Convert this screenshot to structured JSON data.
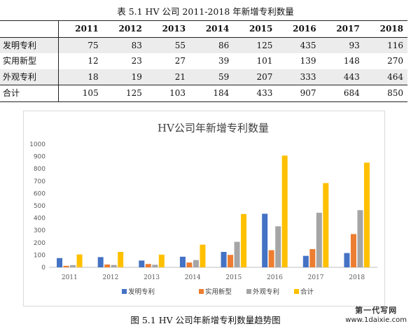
{
  "table_caption": "表 5.1 HV 公司 2011-2018 年新增专利数量",
  "table": {
    "years": [
      "2011",
      "2012",
      "2013",
      "2014",
      "2015",
      "2016",
      "2017",
      "2018"
    ],
    "rows": [
      {
        "label": "发明专利",
        "values": [
          "75",
          "83",
          "55",
          "86",
          "125",
          "435",
          "93",
          "116"
        ]
      },
      {
        "label": "实用新型",
        "values": [
          "12",
          "23",
          "27",
          "39",
          "101",
          "139",
          "148",
          "270"
        ]
      },
      {
        "label": "外观专利",
        "values": [
          "18",
          "19",
          "21",
          "59",
          "207",
          "333",
          "443",
          "464"
        ]
      },
      {
        "label": "合计",
        "values": [
          "105",
          "125",
          "103",
          "184",
          "433",
          "907",
          "684",
          "850"
        ]
      }
    ]
  },
  "chart_data": {
    "type": "bar",
    "title": "HV公司年新增专利数量",
    "categories": [
      "2011",
      "2012",
      "2013",
      "2014",
      "2015",
      "2016",
      "2017",
      "2018"
    ],
    "series": [
      {
        "name": "发明专利",
        "color": "#4472c4",
        "values": [
          75,
          83,
          55,
          86,
          125,
          435,
          93,
          116
        ]
      },
      {
        "name": "实用新型",
        "color": "#ed7d31",
        "values": [
          12,
          23,
          27,
          39,
          101,
          139,
          148,
          270
        ]
      },
      {
        "name": "外观专利",
        "color": "#a5a5a5",
        "values": [
          18,
          19,
          21,
          59,
          207,
          333,
          443,
          464
        ]
      },
      {
        "name": "合计",
        "color": "#ffc000",
        "values": [
          105,
          125,
          103,
          184,
          433,
          907,
          684,
          850
        ]
      }
    ],
    "ylim": [
      0,
      1000
    ],
    "yticks": [
      "0",
      "100",
      "200",
      "300",
      "400",
      "500",
      "600",
      "700",
      "800",
      "900",
      "1000"
    ],
    "xlabel": "",
    "ylabel": "",
    "grid": false,
    "legend": "bottom"
  },
  "figure_caption": "图 5.1 HV 公司年新增专利数量趋势图",
  "watermark": {
    "line1": "第一代写网",
    "line2": "www.1daixie.com"
  }
}
